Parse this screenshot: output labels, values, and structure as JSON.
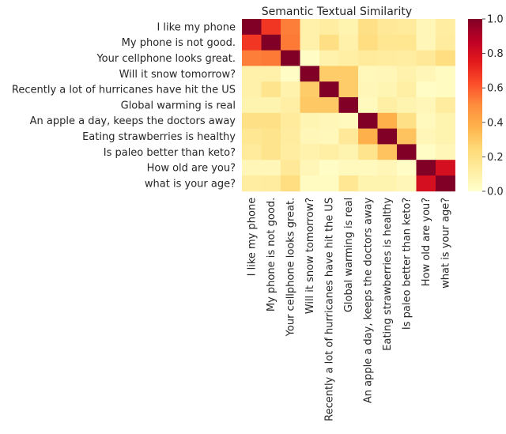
{
  "chart_data": {
    "type": "heatmap",
    "title": "Semantic Textual Similarity",
    "labels": [
      "I like my phone",
      "My phone is not good.",
      "Your cellphone looks great.",
      "Will it snow tomorrow?",
      "Recently a lot of hurricanes have hit the US",
      "Global warming is real",
      "An apple a day, keeps the doctors away",
      "Eating strawberries is healthy",
      "Is paleo better than keto?",
      "How old are you?",
      "what is your age?"
    ],
    "values": [
      [
        1.0,
        0.68,
        0.53,
        0.1,
        0.12,
        0.08,
        0.2,
        0.15,
        0.14,
        0.06,
        0.12
      ],
      [
        0.68,
        1.0,
        0.54,
        0.1,
        0.21,
        0.1,
        0.22,
        0.17,
        0.17,
        0.06,
        0.13
      ],
      [
        0.53,
        0.54,
        1.0,
        0.02,
        0.09,
        0.11,
        0.14,
        0.13,
        0.12,
        0.15,
        0.22
      ],
      [
        0.1,
        0.1,
        0.02,
        1.0,
        0.29,
        0.29,
        0.05,
        0.06,
        0.09,
        0.06,
        0.03
      ],
      [
        0.1,
        0.18,
        0.09,
        0.29,
        1.0,
        0.29,
        0.06,
        0.07,
        0.11,
        0.02,
        0.03
      ],
      [
        0.08,
        0.08,
        0.11,
        0.3,
        0.3,
        1.0,
        0.04,
        0.11,
        0.08,
        0.06,
        0.13
      ],
      [
        0.2,
        0.2,
        0.14,
        0.07,
        0.06,
        0.04,
        1.0,
        0.38,
        0.2,
        0.04,
        0.08
      ],
      [
        0.16,
        0.18,
        0.13,
        0.06,
        0.05,
        0.15,
        0.38,
        1.0,
        0.32,
        0.06,
        0.08
      ],
      [
        0.14,
        0.18,
        0.12,
        0.09,
        0.11,
        0.08,
        0.18,
        0.32,
        1.0,
        0.02,
        0.06
      ],
      [
        0.06,
        0.06,
        0.15,
        0.06,
        0.02,
        0.04,
        0.04,
        0.06,
        0.02,
        1.0,
        0.8
      ],
      [
        0.12,
        0.13,
        0.22,
        0.03,
        0.03,
        0.16,
        0.08,
        0.08,
        0.06,
        0.8,
        1.0
      ]
    ],
    "colorbar": {
      "range": [
        0,
        1
      ],
      "ticks": [
        "0.0",
        "0.2",
        "0.4",
        "0.6",
        "0.8",
        "1.0"
      ],
      "colormap": "YlOrRd"
    }
  }
}
